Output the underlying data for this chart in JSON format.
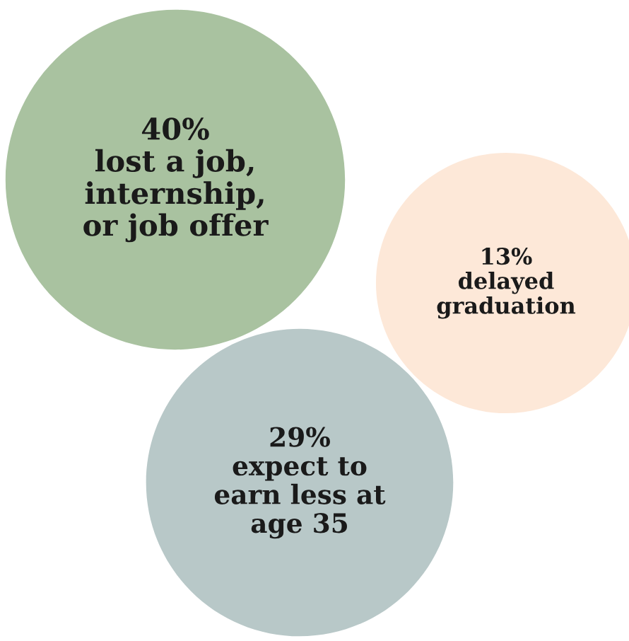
{
  "chart_data": {
    "type": "other",
    "categories": [
      "lost a job,\ninternship,\nor job offer",
      "delayed\ngraduation",
      "expect to\nearn less at\nage 35"
    ],
    "values": [
      40,
      13,
      29
    ],
    "value_labels": [
      "40%",
      "13%",
      "29%"
    ],
    "colors": [
      "#a9c2a0",
      "#fde8d8",
      "#b8c8c8"
    ]
  }
}
